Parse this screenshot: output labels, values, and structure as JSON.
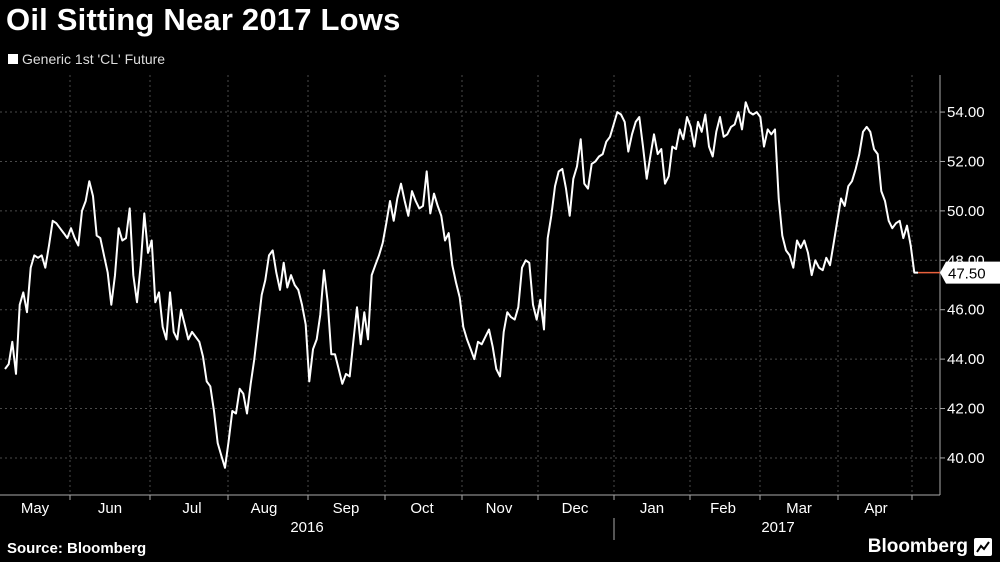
{
  "title": "Oil Sitting Near 2017 Lows",
  "source": "Source: Bloomberg",
  "brand": "Bloomberg",
  "colors": {
    "background": "#000000",
    "line": "#ffffff",
    "grid": "#4a4a4a",
    "last_marker": "#e8603c"
  },
  "chart_data": {
    "type": "line",
    "title": "Oil Sitting Near 2017 Lows",
    "xlabel": "",
    "ylabel": "",
    "legend_position": "top-left",
    "grid": true,
    "ylim": [
      38.5,
      55.5
    ],
    "y_ticks": [
      "40.00",
      "42.00",
      "44.00",
      "46.00",
      "48.00",
      "50.00",
      "52.00",
      "54.00"
    ],
    "last_value_label": "47.50",
    "months": [
      "May",
      "Jun",
      "Jul",
      "Aug",
      "Sep",
      "Oct",
      "Nov",
      "Dec",
      "Jan",
      "Feb",
      "Mar",
      "Apr"
    ],
    "years": [
      "2016",
      "2017"
    ],
    "series": [
      {
        "name": "Generic 1st 'CL' Future",
        "values": [
          43.6,
          43.8,
          44.7,
          43.4,
          46.2,
          46.7,
          45.9,
          47.7,
          48.2,
          48.1,
          48.2,
          47.7,
          48.6,
          49.6,
          49.5,
          49.3,
          49.1,
          48.9,
          49.3,
          48.9,
          48.6,
          50.0,
          50.4,
          51.2,
          50.6,
          49.0,
          48.9,
          48.2,
          47.5,
          46.2,
          47.4,
          49.3,
          48.8,
          48.9,
          50.1,
          47.4,
          46.3,
          47.8,
          49.9,
          48.3,
          48.8,
          46.3,
          46.7,
          45.3,
          44.8,
          46.7,
          45.1,
          44.8,
          46.0,
          45.4,
          44.8,
          45.1,
          44.9,
          44.7,
          44.1,
          43.1,
          42.9,
          41.9,
          40.6,
          40.1,
          39.6,
          40.7,
          41.9,
          41.8,
          42.8,
          42.6,
          41.8,
          43.0,
          44.0,
          45.3,
          46.6,
          47.2,
          48.2,
          48.4,
          47.5,
          46.8,
          47.9,
          46.9,
          47.4,
          47.0,
          46.8,
          46.2,
          45.4,
          43.1,
          44.4,
          44.8,
          45.8,
          47.6,
          46.3,
          44.2,
          44.2,
          43.6,
          43.0,
          43.4,
          43.3,
          44.7,
          46.1,
          44.6,
          45.9,
          44.8,
          47.4,
          47.8,
          48.2,
          48.7,
          49.5,
          50.4,
          49.6,
          50.5,
          51.1,
          50.4,
          49.8,
          50.8,
          50.4,
          50.1,
          50.2,
          51.6,
          49.9,
          50.7,
          50.2,
          49.8,
          48.8,
          49.1,
          47.8,
          47.1,
          46.5,
          45.3,
          44.8,
          44.4,
          44.0,
          44.7,
          44.6,
          44.9,
          45.2,
          44.5,
          43.6,
          43.3,
          45.1,
          45.9,
          45.7,
          45.6,
          46.1,
          47.7,
          48.0,
          47.9,
          46.2,
          45.6,
          46.4,
          45.2,
          48.9,
          49.8,
          51.0,
          51.6,
          51.7,
          50.9,
          49.8,
          51.3,
          51.8,
          52.9,
          51.1,
          50.9,
          51.9,
          52.0,
          52.2,
          52.3,
          52.8,
          53.0,
          53.5,
          54.0,
          53.9,
          53.6,
          52.4,
          53.1,
          53.6,
          53.8,
          52.6,
          51.3,
          52.2,
          53.1,
          52.3,
          52.5,
          51.1,
          51.4,
          52.6,
          52.5,
          53.3,
          52.9,
          53.8,
          53.4,
          52.6,
          53.6,
          53.2,
          53.9,
          52.6,
          52.2,
          53.2,
          53.8,
          53.0,
          53.1,
          53.4,
          53.5,
          54.0,
          53.3,
          54.4,
          54.0,
          53.9,
          54.0,
          53.8,
          52.6,
          53.3,
          53.1,
          53.3,
          50.5,
          49.0,
          48.4,
          48.2,
          47.7,
          48.8,
          48.5,
          48.8,
          48.3,
          47.4,
          48.0,
          47.7,
          47.6,
          48.1,
          47.8,
          48.7,
          49.6,
          50.5,
          50.2,
          51.0,
          51.2,
          51.7,
          52.3,
          53.2,
          53.4,
          53.2,
          52.5,
          52.3,
          50.8,
          50.4,
          49.6,
          49.3,
          49.5,
          49.6,
          48.9,
          49.4,
          48.6,
          47.5,
          47.5
        ]
      }
    ]
  }
}
